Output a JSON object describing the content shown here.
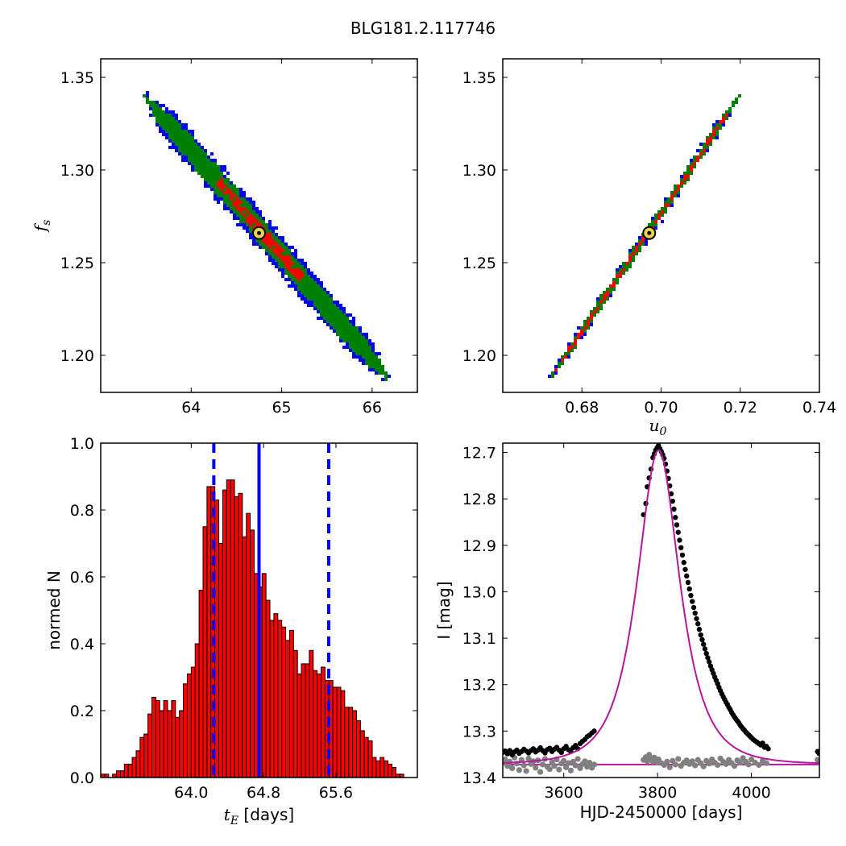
{
  "figure": {
    "title": "BLG181.2.117746"
  },
  "chart_data": [
    {
      "type": "heatmap",
      "panel": "top-left",
      "xlabel": "",
      "ylabel": "f_s",
      "ylabel_main": "f",
      "ylabel_sub": "s",
      "xlim": [
        63.0,
        66.5
      ],
      "ylim": [
        1.18,
        1.36
      ],
      "xticks": [
        64,
        65,
        66
      ],
      "yticks": [
        1.2,
        1.25,
        1.3,
        1.35
      ],
      "ytick_labels": [
        "1.20",
        "1.25",
        "1.30",
        "1.35"
      ],
      "band": {
        "center_start": [
          63.5,
          1.339
        ],
        "center_end": [
          66.15,
          1.189
        ],
        "half_width_blue": 0.18,
        "half_width_green": 0.13,
        "half_width_red": 0.06,
        "red_extent_t": [
          0.3,
          0.65
        ]
      },
      "best_fit": [
        64.75,
        1.266
      ],
      "colors": {
        "outer": "#0000ff",
        "middle": "#008000",
        "inner": "#ff0000",
        "marker": "#e8d44a"
      }
    },
    {
      "type": "heatmap",
      "panel": "top-right",
      "xlabel": "u_0",
      "xlabel_main": "u",
      "xlabel_sub": "0",
      "ylabel": "",
      "xlim": [
        0.66,
        0.74
      ],
      "ylim": [
        1.18,
        1.36
      ],
      "xticks": [
        0.68,
        0.7,
        0.72,
        0.74
      ],
      "xtick_labels": [
        "0.68",
        "0.70",
        "0.72",
        "0.74"
      ],
      "yticks": [
        1.2,
        1.25,
        1.3,
        1.35
      ],
      "ytick_labels": [
        "1.20",
        "1.25",
        "1.30",
        "1.35"
      ],
      "band": {
        "center_start": [
          0.6725,
          1.189
        ],
        "center_end": [
          0.7195,
          1.339
        ],
        "half_width_blue": 0.0011,
        "half_width_green": 0.0009,
        "half_width_red": 0.0004
      },
      "best_fit": [
        0.697,
        1.266
      ],
      "colors": {
        "outer": "#0000ff",
        "middle": "#008000",
        "inner": "#ff0000",
        "marker": "#e8d44a"
      }
    },
    {
      "type": "bar",
      "panel": "bottom-left",
      "xlabel": "t_E [days]",
      "xlabel_main": "t",
      "xlabel_sub": "E",
      "xlabel_unit": " [days]",
      "ylabel": "normed N",
      "xlim": [
        63.0,
        66.5
      ],
      "ylim": [
        0.0,
        1.0
      ],
      "xticks": [
        64.0,
        64.8,
        65.6
      ],
      "xtick_labels": [
        "64.0",
        "64.8",
        "65.6"
      ],
      "yticks": [
        0.0,
        0.2,
        0.4,
        0.6,
        0.8,
        1.0
      ],
      "ytick_labels": [
        "0.0",
        "0.2",
        "0.4",
        "0.6",
        "0.8",
        "1.0"
      ],
      "bin_start": 63.0,
      "bin_width": 0.0435,
      "values": [
        0.01,
        0.01,
        0.0,
        0.01,
        0.02,
        0.02,
        0.04,
        0.04,
        0.06,
        0.08,
        0.12,
        0.13,
        0.19,
        0.24,
        0.23,
        0.2,
        0.23,
        0.2,
        0.23,
        0.18,
        0.2,
        0.28,
        0.31,
        0.33,
        0.4,
        0.56,
        0.75,
        0.87,
        0.87,
        0.83,
        0.7,
        0.86,
        0.89,
        0.89,
        0.84,
        0.85,
        0.72,
        0.79,
        0.74,
        0.61,
        0.57,
        0.61,
        0.53,
        0.47,
        0.49,
        0.47,
        0.45,
        0.41,
        0.44,
        0.38,
        0.31,
        0.34,
        0.34,
        0.38,
        0.32,
        0.31,
        0.33,
        0.29,
        0.29,
        0.27,
        0.27,
        0.26,
        0.21,
        0.21,
        0.2,
        0.17,
        0.14,
        0.12,
        0.11,
        0.06,
        0.05,
        0.06,
        0.05,
        0.04,
        0.03,
        0.01,
        0.01
      ],
      "median": 64.75,
      "lower": 64.25,
      "upper": 65.52,
      "colors": {
        "bars": "#ff0000",
        "lines": "#0000ff"
      }
    },
    {
      "type": "scatter",
      "panel": "bottom-right",
      "xlabel": "HJD-2450000 [days]",
      "ylabel": "I [mag]",
      "xlim": [
        3470,
        4145
      ],
      "ylim": [
        13.4,
        12.68
      ],
      "y_inverted": true,
      "xticks": [
        3600,
        3800,
        4000
      ],
      "xtick_labels": [
        "3600",
        "3800",
        "4000"
      ],
      "yticks": [
        12.7,
        12.8,
        12.9,
        13.0,
        13.1,
        13.2,
        13.3,
        13.4
      ],
      "ytick_labels": [
        "12.7",
        "12.8",
        "12.9",
        "13.0",
        "13.1",
        "13.2",
        "13.3",
        "13.4"
      ],
      "model": {
        "t0": 3802,
        "tE": 64.75,
        "u0": 0.697,
        "fs": 1.266,
        "I_base": 13.372
      },
      "observed": [
        [
          3470,
          13.346
        ],
        [
          3475,
          13.343
        ],
        [
          3480,
          13.349
        ],
        [
          3485,
          13.342
        ],
        [
          3490,
          13.351
        ],
        [
          3495,
          13.345
        ],
        [
          3500,
          13.341
        ],
        [
          3505,
          13.348
        ],
        [
          3510,
          13.344
        ],
        [
          3515,
          13.339
        ],
        [
          3520,
          13.343
        ],
        [
          3525,
          13.347
        ],
        [
          3530,
          13.342
        ],
        [
          3535,
          13.338
        ],
        [
          3540,
          13.345
        ],
        [
          3545,
          13.341
        ],
        [
          3550,
          13.336
        ],
        [
          3555,
          13.342
        ],
        [
          3560,
          13.347
        ],
        [
          3565,
          13.34
        ],
        [
          3570,
          13.337
        ],
        [
          3575,
          13.344
        ],
        [
          3580,
          13.339
        ],
        [
          3585,
          13.335
        ],
        [
          3590,
          13.341
        ],
        [
          3595,
          13.346
        ],
        [
          3600,
          13.338
        ],
        [
          3605,
          13.333
        ],
        [
          3610,
          13.34
        ],
        [
          3615,
          13.344
        ],
        [
          3620,
          13.336
        ],
        [
          3625,
          13.331
        ],
        [
          3630,
          13.338
        ],
        [
          3635,
          13.327
        ],
        [
          3640,
          13.322
        ],
        [
          3645,
          13.318
        ],
        [
          3650,
          13.312
        ],
        [
          3655,
          13.309
        ],
        [
          3660,
          13.304
        ],
        [
          3665,
          13.3
        ],
        [
          3770,
          12.834
        ],
        [
          3775,
          12.81
        ],
        [
          3778,
          12.774
        ],
        [
          3782,
          12.755
        ],
        [
          3786,
          12.736
        ],
        [
          3790,
          12.711
        ],
        [
          3793,
          12.703
        ],
        [
          3796,
          12.695
        ],
        [
          3799,
          12.69
        ],
        [
          3802,
          12.685
        ],
        [
          3805,
          12.692
        ],
        [
          3808,
          12.698
        ],
        [
          3811,
          12.705
        ],
        [
          3814,
          12.713
        ],
        [
          3817,
          12.725
        ],
        [
          3820,
          12.74
        ],
        [
          3823,
          12.756
        ],
        [
          3826,
          12.772
        ],
        [
          3829,
          12.789
        ],
        [
          3832,
          12.805
        ],
        [
          3835,
          12.822
        ],
        [
          3838,
          12.84
        ],
        [
          3841,
          12.856
        ],
        [
          3844,
          12.872
        ],
        [
          3847,
          12.889
        ],
        [
          3850,
          12.905
        ],
        [
          3853,
          12.921
        ],
        [
          3856,
          12.937
        ],
        [
          3859,
          12.952
        ],
        [
          3862,
          12.966
        ],
        [
          3865,
          12.98
        ],
        [
          3868,
          12.994
        ],
        [
          3871,
          13.008
        ],
        [
          3874,
          13.021
        ],
        [
          3877,
          13.034
        ],
        [
          3880,
          13.046
        ],
        [
          3883,
          13.058
        ],
        [
          3886,
          13.069
        ],
        [
          3889,
          13.081
        ],
        [
          3892,
          13.093
        ],
        [
          3895,
          13.103
        ],
        [
          3898,
          13.113
        ],
        [
          3901,
          13.123
        ],
        [
          3904,
          13.133
        ],
        [
          3907,
          13.142
        ],
        [
          3910,
          13.151
        ],
        [
          3913,
          13.16
        ],
        [
          3916,
          13.168
        ],
        [
          3919,
          13.176
        ],
        [
          3922,
          13.184
        ],
        [
          3925,
          13.191
        ],
        [
          3928,
          13.198
        ],
        [
          3931,
          13.206
        ],
        [
          3934,
          13.213
        ],
        [
          3937,
          13.22
        ],
        [
          3940,
          13.226
        ],
        [
          3943,
          13.232
        ],
        [
          3946,
          13.238
        ],
        [
          3949,
          13.243
        ],
        [
          3952,
          13.249
        ],
        [
          3955,
          13.254
        ],
        [
          3958,
          13.26
        ],
        [
          3961,
          13.265
        ],
        [
          3964,
          13.27
        ],
        [
          3967,
          13.274
        ],
        [
          3970,
          13.278
        ],
        [
          3973,
          13.282
        ],
        [
          3976,
          13.287
        ],
        [
          3979,
          13.291
        ],
        [
          3982,
          13.295
        ],
        [
          3985,
          13.298
        ],
        [
          3988,
          13.302
        ],
        [
          3991,
          13.305
        ],
        [
          3994,
          13.308
        ],
        [
          3997,
          13.311
        ],
        [
          4000,
          13.314
        ],
        [
          4004,
          13.318
        ],
        [
          4008,
          13.321
        ],
        [
          4012,
          13.324
        ],
        [
          4016,
          13.327
        ],
        [
          4020,
          13.33
        ],
        [
          4024,
          13.326
        ],
        [
          4028,
          13.335
        ],
        [
          4032,
          13.333
        ],
        [
          4036,
          13.338
        ],
        [
          4141,
          13.344
        ],
        [
          4144,
          13.348
        ]
      ],
      "residuals": [
        [
          3470,
          13.368
        ],
        [
          3475,
          13.361
        ],
        [
          3480,
          13.375
        ],
        [
          3485,
          13.366
        ],
        [
          3490,
          13.38
        ],
        [
          3495,
          13.357
        ],
        [
          3500,
          13.37
        ],
        [
          3505,
          13.384
        ],
        [
          3510,
          13.362
        ],
        [
          3515,
          13.374
        ],
        [
          3520,
          13.386
        ],
        [
          3525,
          13.359
        ],
        [
          3530,
          13.371
        ],
        [
          3535,
          13.365
        ],
        [
          3540,
          13.379
        ],
        [
          3545,
          13.363
        ],
        [
          3550,
          13.388
        ],
        [
          3555,
          13.372
        ],
        [
          3560,
          13.36
        ],
        [
          3565,
          13.377
        ],
        [
          3570,
          13.382
        ],
        [
          3575,
          13.367
        ],
        [
          3580,
          13.375
        ],
        [
          3585,
          13.361
        ],
        [
          3590,
          13.383
        ],
        [
          3595,
          13.37
        ],
        [
          3600,
          13.364
        ],
        [
          3605,
          13.378
        ],
        [
          3610,
          13.369
        ],
        [
          3615,
          13.385
        ],
        [
          3620,
          13.366
        ],
        [
          3625,
          13.374
        ],
        [
          3630,
          13.36
        ],
        [
          3635,
          13.38
        ],
        [
          3640,
          13.371
        ],
        [
          3645,
          13.365
        ],
        [
          3650,
          13.377
        ],
        [
          3655,
          13.368
        ],
        [
          3660,
          13.379
        ],
        [
          3665,
          13.372
        ],
        [
          3770,
          13.362
        ],
        [
          3775,
          13.356
        ],
        [
          3778,
          13.365
        ],
        [
          3782,
          13.351
        ],
        [
          3786,
          13.359
        ],
        [
          3790,
          13.366
        ],
        [
          3793,
          13.357
        ],
        [
          3796,
          13.362
        ],
        [
          3799,
          13.367
        ],
        [
          3802,
          13.361
        ],
        [
          3808,
          13.369
        ],
        [
          3814,
          13.373
        ],
        [
          3820,
          13.366
        ],
        [
          3826,
          13.378
        ],
        [
          3832,
          13.364
        ],
        [
          3838,
          13.372
        ],
        [
          3844,
          13.36
        ],
        [
          3850,
          13.375
        ],
        [
          3856,
          13.368
        ],
        [
          3862,
          13.363
        ],
        [
          3868,
          13.371
        ],
        [
          3874,
          13.365
        ],
        [
          3880,
          13.374
        ],
        [
          3886,
          13.362
        ],
        [
          3892,
          13.369
        ],
        [
          3898,
          13.376
        ],
        [
          3904,
          13.364
        ],
        [
          3910,
          13.37
        ],
        [
          3916,
          13.361
        ],
        [
          3922,
          13.368
        ],
        [
          3928,
          13.373
        ],
        [
          3934,
          13.359
        ],
        [
          3940,
          13.366
        ],
        [
          3946,
          13.371
        ],
        [
          3952,
          13.362
        ],
        [
          3958,
          13.369
        ],
        [
          3964,
          13.375
        ],
        [
          3970,
          13.363
        ],
        [
          3976,
          13.368
        ],
        [
          3982,
          13.358
        ],
        [
          3988,
          13.366
        ],
        [
          3994,
          13.372
        ],
        [
          4000,
          13.361
        ],
        [
          4008,
          13.368
        ],
        [
          4016,
          13.373
        ],
        [
          4024,
          13.364
        ],
        [
          4032,
          13.369
        ],
        [
          4141,
          13.362
        ],
        [
          4144,
          13.366
        ]
      ],
      "colors": {
        "observed": "#000000",
        "residuals": "#808080",
        "model": "#b5179e"
      }
    }
  ]
}
